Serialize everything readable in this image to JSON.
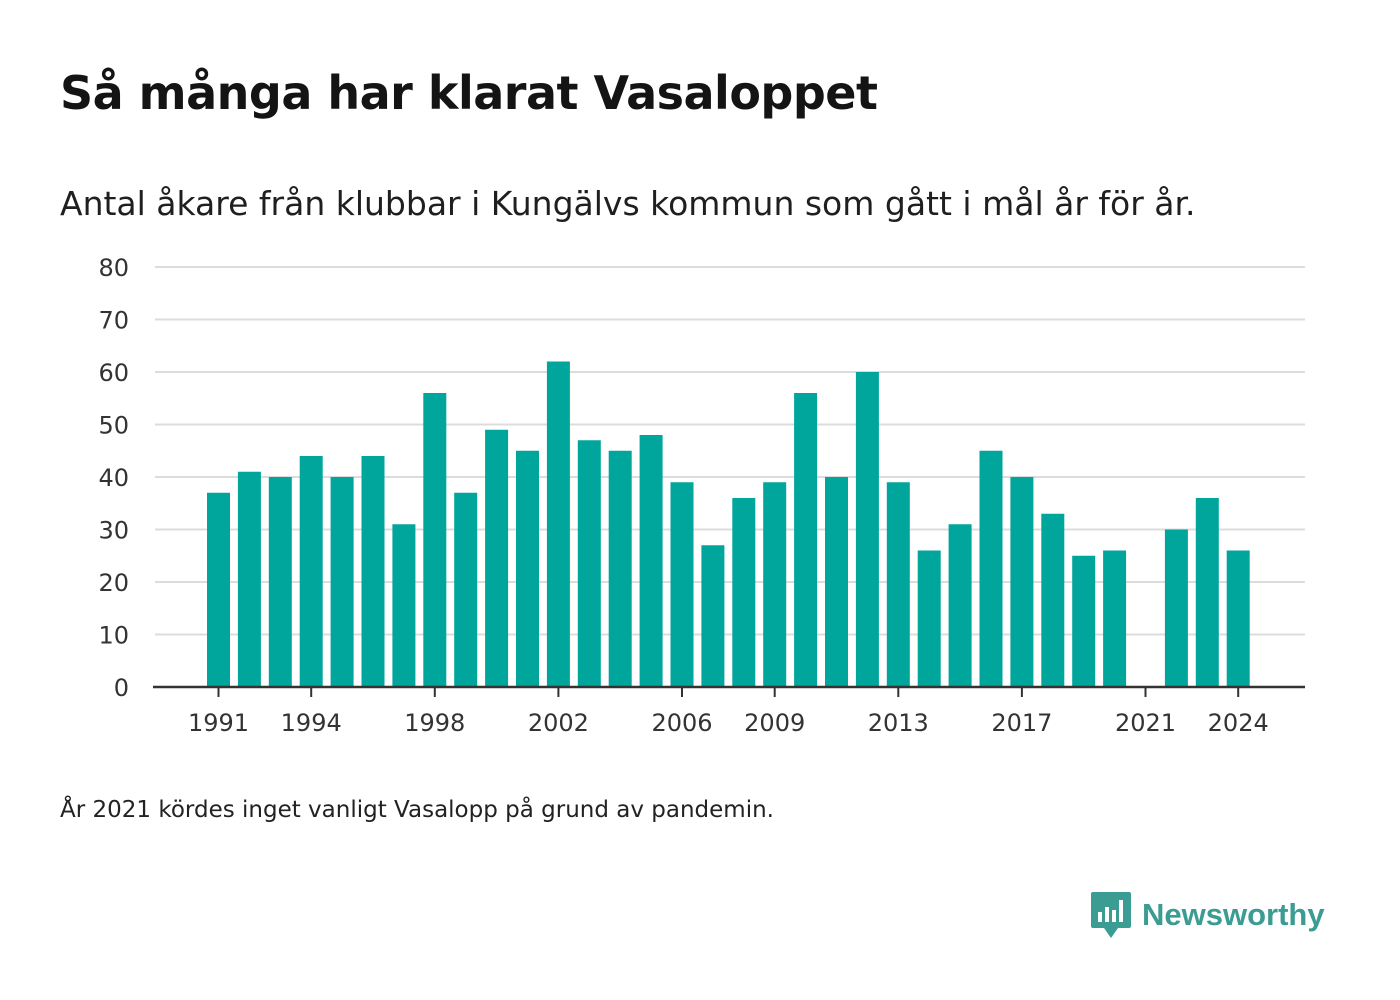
{
  "title": "Så många har klarat Vasaloppet",
  "subtitle": "Antal åkare från klubbar i Kungälvs kommun som gått i mål år för år.",
  "note": "År 2021 kördes inget vanligt Vasalopp på grund av pandemin.",
  "brand": {
    "name": "Newsworthy",
    "color": "#3b9c94",
    "icon": "newsworthy-logo-icon"
  },
  "chart_data": {
    "type": "bar",
    "categories": [
      1991,
      1992,
      1993,
      1994,
      1995,
      1996,
      1997,
      1998,
      1999,
      2000,
      2001,
      2002,
      2003,
      2004,
      2005,
      2006,
      2007,
      2008,
      2009,
      2010,
      2011,
      2012,
      2013,
      2014,
      2015,
      2016,
      2017,
      2018,
      2019,
      2020,
      2021,
      2022,
      2023,
      2024
    ],
    "values": [
      37,
      41,
      40,
      44,
      40,
      44,
      31,
      56,
      37,
      49,
      45,
      62,
      47,
      45,
      48,
      39,
      27,
      36,
      39,
      56,
      40,
      60,
      39,
      26,
      31,
      45,
      40,
      33,
      25,
      26,
      null,
      30,
      36,
      26
    ],
    "x_tick_labels": [
      "1991",
      "1994",
      "1998",
      "2002",
      "2006",
      "2009",
      "2013",
      "2017",
      "2021",
      "2024"
    ],
    "y_ticks": [
      "0",
      "10",
      "20",
      "30",
      "40",
      "50",
      "60",
      "70",
      "80"
    ],
    "ylim": [
      0,
      80
    ],
    "bar_color": "#00a59c",
    "grid": true,
    "legend": "none"
  }
}
